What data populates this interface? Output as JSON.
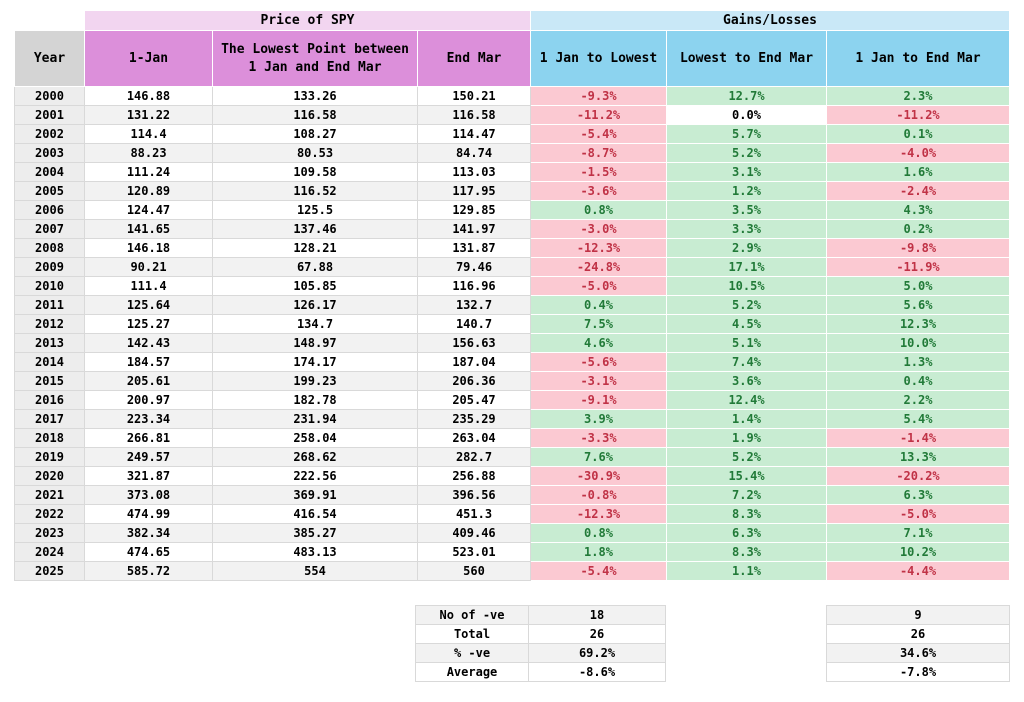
{
  "table": {
    "group_headers": {
      "price": "Price of SPY",
      "gains": "Gains/Losses"
    },
    "column_headers": {
      "year": "Year",
      "jan1": "1-Jan",
      "lowest": "The Lowest Point between 1 Jan and End Mar",
      "endmar": "End Mar",
      "g1": "1 Jan to Lowest",
      "g2": "Lowest to End Mar",
      "g3": "1 Jan to End Mar"
    },
    "rows": [
      {
        "year": "2000",
        "jan1": "146.88",
        "lowest": "133.26",
        "endmar": "150.21",
        "g1": "-9.3%",
        "g2": "12.7%",
        "g3": "2.3%"
      },
      {
        "year": "2001",
        "jan1": "131.22",
        "lowest": "116.58",
        "endmar": "116.58",
        "g1": "-11.2%",
        "g2": "0.0%",
        "g3": "-11.2%"
      },
      {
        "year": "2002",
        "jan1": "114.4",
        "lowest": "108.27",
        "endmar": "114.47",
        "g1": "-5.4%",
        "g2": "5.7%",
        "g3": "0.1%"
      },
      {
        "year": "2003",
        "jan1": "88.23",
        "lowest": "80.53",
        "endmar": "84.74",
        "g1": "-8.7%",
        "g2": "5.2%",
        "g3": "-4.0%"
      },
      {
        "year": "2004",
        "jan1": "111.24",
        "lowest": "109.58",
        "endmar": "113.03",
        "g1": "-1.5%",
        "g2": "3.1%",
        "g3": "1.6%"
      },
      {
        "year": "2005",
        "jan1": "120.89",
        "lowest": "116.52",
        "endmar": "117.95",
        "g1": "-3.6%",
        "g2": "1.2%",
        "g3": "-2.4%"
      },
      {
        "year": "2006",
        "jan1": "124.47",
        "lowest": "125.5",
        "endmar": "129.85",
        "g1": "0.8%",
        "g2": "3.5%",
        "g3": "4.3%"
      },
      {
        "year": "2007",
        "jan1": "141.65",
        "lowest": "137.46",
        "endmar": "141.97",
        "g1": "-3.0%",
        "g2": "3.3%",
        "g3": "0.2%"
      },
      {
        "year": "2008",
        "jan1": "146.18",
        "lowest": "128.21",
        "endmar": "131.87",
        "g1": "-12.3%",
        "g2": "2.9%",
        "g3": "-9.8%"
      },
      {
        "year": "2009",
        "jan1": "90.21",
        "lowest": "67.88",
        "endmar": "79.46",
        "g1": "-24.8%",
        "g2": "17.1%",
        "g3": "-11.9%"
      },
      {
        "year": "2010",
        "jan1": "111.4",
        "lowest": "105.85",
        "endmar": "116.96",
        "g1": "-5.0%",
        "g2": "10.5%",
        "g3": "5.0%"
      },
      {
        "year": "2011",
        "jan1": "125.64",
        "lowest": "126.17",
        "endmar": "132.7",
        "g1": "0.4%",
        "g2": "5.2%",
        "g3": "5.6%"
      },
      {
        "year": "2012",
        "jan1": "125.27",
        "lowest": "134.7",
        "endmar": "140.7",
        "g1": "7.5%",
        "g2": "4.5%",
        "g3": "12.3%"
      },
      {
        "year": "2013",
        "jan1": "142.43",
        "lowest": "148.97",
        "endmar": "156.63",
        "g1": "4.6%",
        "g2": "5.1%",
        "g3": "10.0%"
      },
      {
        "year": "2014",
        "jan1": "184.57",
        "lowest": "174.17",
        "endmar": "187.04",
        "g1": "-5.6%",
        "g2": "7.4%",
        "g3": "1.3%"
      },
      {
        "year": "2015",
        "jan1": "205.61",
        "lowest": "199.23",
        "endmar": "206.36",
        "g1": "-3.1%",
        "g2": "3.6%",
        "g3": "0.4%"
      },
      {
        "year": "2016",
        "jan1": "200.97",
        "lowest": "182.78",
        "endmar": "205.47",
        "g1": "-9.1%",
        "g2": "12.4%",
        "g3": "2.2%"
      },
      {
        "year": "2017",
        "jan1": "223.34",
        "lowest": "231.94",
        "endmar": "235.29",
        "g1": "3.9%",
        "g2": "1.4%",
        "g3": "5.4%"
      },
      {
        "year": "2018",
        "jan1": "266.81",
        "lowest": "258.04",
        "endmar": "263.04",
        "g1": "-3.3%",
        "g2": "1.9%",
        "g3": "-1.4%"
      },
      {
        "year": "2019",
        "jan1": "249.57",
        "lowest": "268.62",
        "endmar": "282.7",
        "g1": "7.6%",
        "g2": "5.2%",
        "g3": "13.3%"
      },
      {
        "year": "2020",
        "jan1": "321.87",
        "lowest": "222.56",
        "endmar": "256.88",
        "g1": "-30.9%",
        "g2": "15.4%",
        "g3": "-20.2%"
      },
      {
        "year": "2021",
        "jan1": "373.08",
        "lowest": "369.91",
        "endmar": "396.56",
        "g1": "-0.8%",
        "g2": "7.2%",
        "g3": "6.3%"
      },
      {
        "year": "2022",
        "jan1": "474.99",
        "lowest": "416.54",
        "endmar": "451.3",
        "g1": "-12.3%",
        "g2": "8.3%",
        "g3": "-5.0%"
      },
      {
        "year": "2023",
        "jan1": "382.34",
        "lowest": "385.27",
        "endmar": "409.46",
        "g1": "0.8%",
        "g2": "6.3%",
        "g3": "7.1%"
      },
      {
        "year": "2024",
        "jan1": "474.65",
        "lowest": "483.13",
        "endmar": "523.01",
        "g1": "1.8%",
        "g2": "8.3%",
        "g3": "10.2%"
      },
      {
        "year": "2025",
        "jan1": "585.72",
        "lowest": "554",
        "endmar": "560",
        "g1": "-5.4%",
        "g2": "1.1%",
        "g3": "-4.4%"
      }
    ]
  },
  "summary": {
    "labels": [
      "No of -ve",
      "Total",
      "% -ve",
      "Average"
    ],
    "jan_to_lowest_values": [
      "18",
      "26",
      "69.2%",
      "-8.6%"
    ],
    "jan_to_endmar_values": [
      "9",
      "26",
      "34.6%",
      "-7.8%"
    ]
  },
  "colors": {
    "negative_bg": "#FBC9D2",
    "negative_text": "#C03246",
    "positive_bg": "#C8ECD2",
    "positive_text": "#217A38",
    "price_group_bg": "#F2D5F0",
    "price_header_bg": "#DC8FDA",
    "gains_group_bg": "#C9E8F7",
    "gains_header_bg": "#8CD3EF",
    "year_header_bg": "#D4D4D4",
    "year_cell_bg": "#EDEDED",
    "stripe_bg": "#F2F2F2"
  }
}
